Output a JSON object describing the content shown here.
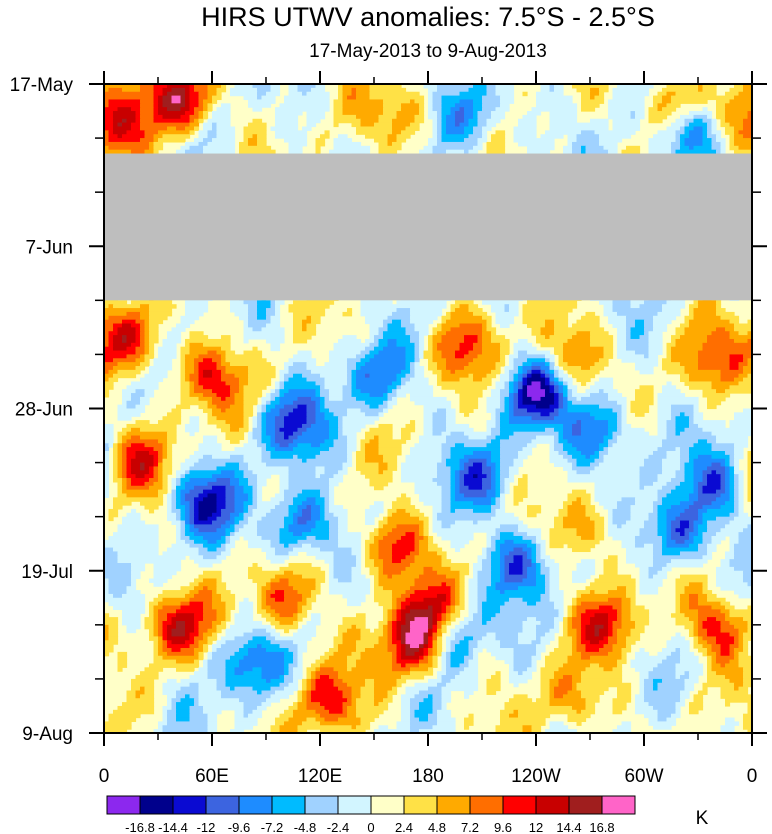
{
  "chart_data": {
    "type": "heatmap",
    "title": "HIRS UTWV anomalies: 7.5°S - 2.5°S",
    "subtitle": "17-May-2013 to 9-Aug-2013",
    "x_ticks": [
      {
        "label": "0",
        "lon": 0
      },
      {
        "label": "60E",
        "lon": 60
      },
      {
        "label": "120E",
        "lon": 120
      },
      {
        "label": "180",
        "lon": 180
      },
      {
        "label": "120W",
        "lon": 240
      },
      {
        "label": "60W",
        "lon": 300
      },
      {
        "label": "0",
        "lon": 360
      }
    ],
    "x_range": [
      0,
      360
    ],
    "y_ticks": [
      {
        "label": "17-May",
        "day": 0
      },
      {
        "label": "7-Jun",
        "day": 21
      },
      {
        "label": "28-Jun",
        "day": 42
      },
      {
        "label": "19-Jul",
        "day": 63
      },
      {
        "label": "9-Aug",
        "day": 84
      }
    ],
    "y_range": [
      0,
      84
    ],
    "missing_days": [
      9,
      28
    ],
    "colorbar": {
      "unit": "K",
      "levels": [
        "-16.8",
        "-14.4",
        "-12",
        "-9.6",
        "-7.2",
        "-4.8",
        "-2.4",
        "0",
        "2.4",
        "4.8",
        "7.2",
        "9.6",
        "12",
        "14.4",
        "16.8"
      ],
      "colors": [
        "#8c28ee",
        "#00008c",
        "#0a0ad2",
        "#3c64e0",
        "#1e8cff",
        "#00bbff",
        "#a0d2ff",
        "#d2f5ff",
        "#ffffc8",
        "#ffe146",
        "#ffaa00",
        "#ff6e00",
        "#ff0000",
        "#c80000",
        "#a01e1e",
        "#ff64c8"
      ]
    },
    "missing_color": "#bebebe",
    "features": [
      {
        "lon": 40,
        "day": 2,
        "value": 16
      },
      {
        "lon": 15,
        "day": 33,
        "value": 11
      },
      {
        "lon": 58,
        "day": 38,
        "value": 10
      },
      {
        "lon": 22,
        "day": 49,
        "value": 9
      },
      {
        "lon": 55,
        "day": 54,
        "value": -13
      },
      {
        "lon": 105,
        "day": 44,
        "value": -11
      },
      {
        "lon": 110,
        "day": 57,
        "value": -12
      },
      {
        "lon": 160,
        "day": 60,
        "value": 12
      },
      {
        "lon": 180,
        "day": 69,
        "value": 16
      },
      {
        "lon": 172,
        "day": 73,
        "value": 13
      },
      {
        "lon": 190,
        "day": 71,
        "value": -12
      },
      {
        "lon": 240,
        "day": 40,
        "value": -14
      },
      {
        "lon": 275,
        "day": 45,
        "value": -11
      },
      {
        "lon": 210,
        "day": 51,
        "value": -9
      },
      {
        "lon": 230,
        "day": 62,
        "value": -10
      },
      {
        "lon": 280,
        "day": 70,
        "value": 10
      },
      {
        "lon": 318,
        "day": 58,
        "value": -12
      },
      {
        "lon": 340,
        "day": 52,
        "value": -9
      },
      {
        "lon": 340,
        "day": 70,
        "value": 11
      },
      {
        "lon": 320,
        "day": 2,
        "value": 9
      },
      {
        "lon": 330,
        "day": 7,
        "value": -9
      },
      {
        "lon": 10,
        "day": 6,
        "value": 9
      },
      {
        "lon": 125,
        "day": 80,
        "value": 10
      },
      {
        "lon": 100,
        "day": 67,
        "value": 10
      },
      {
        "lon": 260,
        "day": 80,
        "value": 7
      },
      {
        "lon": 40,
        "day": 70,
        "value": 12
      },
      {
        "lon": 80,
        "day": 75,
        "value": -9
      },
      {
        "lon": 150,
        "day": 38,
        "value": -8
      },
      {
        "lon": 200,
        "day": 34,
        "value": 8
      },
      {
        "lon": 340,
        "day": 36,
        "value": 8
      },
      {
        "lon": 258,
        "day": 35,
        "value": 9
      },
      {
        "lon": 270,
        "day": 58,
        "value": 8
      },
      {
        "lon": 205,
        "day": 4,
        "value": -8
      },
      {
        "lon": 165,
        "day": 4,
        "value": 8
      }
    ]
  }
}
